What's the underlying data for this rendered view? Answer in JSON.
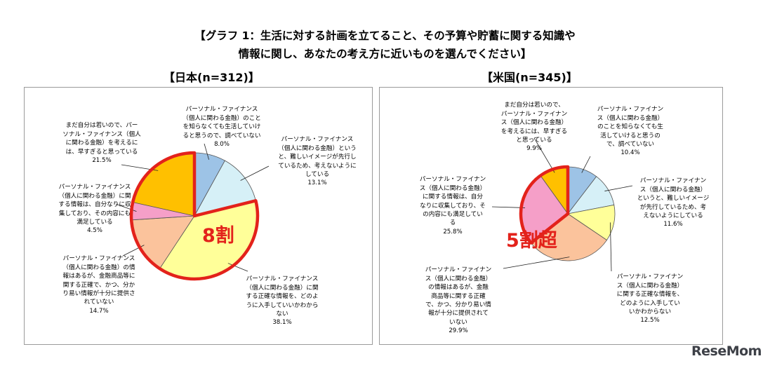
{
  "header": {
    "title_line1": "【グラフ 1：生活に対する計画を立てること、その予算や貯蓄に関する知識や",
    "title_line2": "情報に関し、あなたの考え方に近いものを選んでください】"
  },
  "chart_data": [
    {
      "type": "pie",
      "title": "【日本(n=312)】",
      "callout": "8割",
      "slices": [
        {
          "label": "パーソナル・ファイナンス\n（個人に関わる金融）のこと\nを知らなくても生活していけ\nると思うので、調べていない",
          "value": 8.0,
          "value_text": "8.0%",
          "color": "#9dc3e6"
        },
        {
          "label": "パーソナル・ファイナンス\n（個人に関わる金融）という\nと、難しいイメージが先行し\nているため、考えないように\nしている",
          "value": 13.1,
          "value_text": "13.1%",
          "color": "#d6f0f7"
        },
        {
          "label": "パーソナル・ファイナンス\n（個人に関わる金融）に関\nする正確な情報を、どのよ\nうに入手していいかわから\nない",
          "value": 38.1,
          "value_text": "38.1%",
          "color": "#ffff99"
        },
        {
          "label": "パーソナル・ファイナンス\n（個人に関わる金融）の情\n報はあるが、金融商品等に\n関する正確で、かつ、分か\nり易い情報が十分に提供さ\nれていない",
          "value": 14.7,
          "value_text": "14.7%",
          "color": "#fbc39c"
        },
        {
          "label": "パーソナル・ファイナンス\n（個人に関わる金融）に関\nする情報は、自分なりに収\n集しており、その内容にも\n満足している",
          "value": 4.5,
          "value_text": "4.5%",
          "color": "#f59fc8"
        },
        {
          "label": "まだ自分は若いので、パー\nソナル・ファイナンス（個人\nに関わる金融）を考えるに\nは、早すぎると思っている",
          "value": 21.5,
          "value_text": "21.5%",
          "color": "#ffc000"
        }
      ]
    },
    {
      "type": "pie",
      "title": "【米国(n=345)】",
      "callout": "5割超",
      "slices": [
        {
          "label": "パーソナル・ファイナン\nス（個人に関わる金融）\nのことを知らなくても生\n活していけると思うの\nで、調べていない",
          "value": 10.4,
          "value_text": "10.4%",
          "color": "#9dc3e6"
        },
        {
          "label": "パーソナル・ファイナン\nス（個人に関わる金融）\nというと、難しいイメージ\nが先行しているため、考\nえないようにしている",
          "value": 11.6,
          "value_text": "11.6%",
          "color": "#d6f0f7"
        },
        {
          "label": "パーソナル・ファイナン\nス（個人に関わる金融）\nに関する正確な情報を、\nどのように入手してい\nいかわからない",
          "value": 12.5,
          "value_text": "12.5%",
          "color": "#ffff99"
        },
        {
          "label": "パーソナル・ファイナン\nス（個人に関わる金融）\nの情報はあるが、金融\n商品等に関する正確\nで、かつ、分かり易い情\n報が十分に提供されて\nいない",
          "value": 29.9,
          "value_text": "29.9%",
          "color": "#fbc39c"
        },
        {
          "label": "パーソナル・ファイナン\nス（個人に関わる金融）\nに関する情報は、自分\nなりに収集しており、そ\nの内容にも満足してい\nる",
          "value": 25.8,
          "value_text": "25.8%",
          "color": "#f59fc8"
        },
        {
          "label": "まだ自分は若いので、\nパーソナル・ファイナン\nス（個人に関わる金融）\nを考えるには、早すぎる\nと思っている",
          "value": 9.9,
          "value_text": "9.9%",
          "color": "#ffc000"
        }
      ]
    }
  ],
  "watermark": "ReseMom"
}
